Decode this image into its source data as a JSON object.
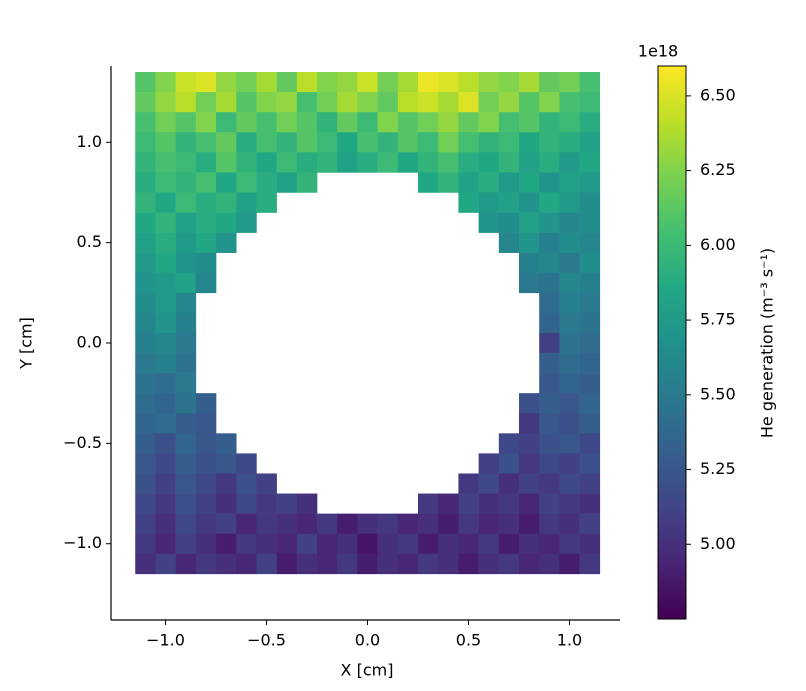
{
  "chart_data": {
    "type": "heatmap",
    "xlabel": "X [cm]",
    "ylabel": "Y [cm]",
    "x": [
      -1.1,
      -1.0,
      -0.9,
      -0.8,
      -0.7,
      -0.6,
      -0.5,
      -0.4,
      -0.3,
      -0.2,
      -0.1,
      0.0,
      0.1,
      0.2,
      0.3,
      0.4,
      0.5,
      0.6,
      0.7,
      0.8,
      0.9,
      1.0,
      1.1
    ],
    "y": [
      1.3,
      1.2,
      1.1,
      1.0,
      0.9,
      0.8,
      0.7,
      0.6,
      0.5,
      0.4,
      0.3,
      0.2,
      0.1,
      0.0,
      -0.1,
      -0.2,
      -0.3,
      -0.4,
      -0.5,
      -0.6,
      -0.7,
      -0.8,
      -0.9,
      -1.0,
      -1.1
    ],
    "values": [
      [
        6.1,
        6.25,
        6.45,
        6.5,
        6.3,
        6.2,
        6.35,
        6.15,
        6.4,
        6.25,
        6.3,
        6.45,
        6.2,
        6.35,
        6.55,
        6.5,
        6.4,
        6.3,
        6.25,
        6.35,
        6.15,
        6.2,
        6.05
      ],
      [
        6.15,
        6.3,
        6.4,
        6.2,
        6.35,
        6.1,
        6.25,
        6.3,
        6.05,
        6.2,
        6.35,
        6.25,
        6.15,
        6.4,
        6.45,
        6.35,
        6.5,
        6.2,
        6.3,
        6.1,
        6.25,
        6.05,
        6.0
      ],
      [
        6.05,
        6.2,
        6.1,
        6.25,
        6.0,
        6.15,
        6.05,
        6.2,
        6.1,
        5.95,
        6.15,
        6.0,
        6.25,
        6.1,
        6.2,
        6.3,
        6.15,
        6.25,
        6.05,
        6.1,
        5.95,
        6.0,
        5.9
      ],
      [
        6.0,
        6.1,
        5.95,
        6.05,
        6.15,
        5.9,
        6.05,
        5.95,
        6.1,
        6.0,
        5.85,
        6.05,
        5.95,
        6.1,
        6.0,
        6.2,
        6.05,
        5.95,
        6.0,
        5.85,
        5.95,
        5.9,
        5.8
      ],
      [
        5.95,
        6.05,
        6.0,
        5.9,
        6.1,
        5.95,
        5.85,
        6.0,
        5.9,
        5.95,
        5.8,
        5.9,
        6.0,
        5.85,
        5.95,
        6.05,
        5.9,
        5.85,
        5.95,
        5.8,
        5.9,
        5.75,
        5.85
      ],
      [
        5.9,
        6.0,
        5.95,
        6.05,
        5.85,
        6.0,
        5.9,
        5.8,
        5.95,
        null,
        null,
        null,
        null,
        null,
        5.85,
        5.95,
        5.8,
        5.9,
        5.75,
        5.85,
        5.7,
        5.8,
        5.75
      ],
      [
        5.95,
        5.85,
        6.0,
        5.9,
        5.95,
        5.8,
        5.9,
        null,
        null,
        null,
        null,
        null,
        null,
        null,
        null,
        null,
        5.85,
        5.75,
        5.8,
        5.7,
        5.85,
        5.75,
        5.65
      ],
      [
        5.85,
        5.95,
        5.8,
        5.9,
        5.85,
        5.75,
        null,
        null,
        null,
        null,
        null,
        null,
        null,
        null,
        null,
        null,
        null,
        5.7,
        5.65,
        5.8,
        5.7,
        5.6,
        5.65
      ],
      [
        5.8,
        5.9,
        5.75,
        5.85,
        5.7,
        null,
        null,
        null,
        null,
        null,
        null,
        null,
        null,
        null,
        null,
        null,
        null,
        null,
        5.6,
        5.7,
        5.55,
        5.65,
        5.6
      ],
      [
        5.75,
        5.85,
        5.7,
        5.65,
        null,
        null,
        null,
        null,
        null,
        null,
        null,
        null,
        null,
        null,
        null,
        null,
        null,
        null,
        null,
        5.55,
        5.6,
        5.5,
        5.65
      ],
      [
        5.7,
        5.75,
        5.8,
        5.6,
        null,
        null,
        null,
        null,
        null,
        null,
        null,
        null,
        null,
        null,
        null,
        null,
        null,
        null,
        null,
        5.5,
        5.45,
        5.6,
        5.55
      ],
      [
        5.65,
        5.75,
        5.6,
        null,
        null,
        null,
        null,
        null,
        null,
        null,
        null,
        null,
        null,
        null,
        null,
        null,
        null,
        null,
        null,
        null,
        5.4,
        5.55,
        5.5
      ],
      [
        5.6,
        5.7,
        5.55,
        null,
        null,
        null,
        null,
        null,
        null,
        null,
        null,
        null,
        null,
        null,
        null,
        null,
        null,
        null,
        null,
        null,
        5.35,
        5.5,
        5.45
      ],
      [
        5.55,
        5.6,
        5.5,
        null,
        null,
        null,
        null,
        null,
        null,
        null,
        null,
        null,
        null,
        null,
        null,
        null,
        null,
        null,
        null,
        null,
        5.1,
        5.45,
        5.4
      ],
      [
        5.5,
        5.55,
        5.45,
        null,
        null,
        null,
        null,
        null,
        null,
        null,
        null,
        null,
        null,
        null,
        null,
        null,
        null,
        null,
        null,
        null,
        5.3,
        5.4,
        5.35
      ],
      [
        5.45,
        5.4,
        5.5,
        null,
        null,
        null,
        null,
        null,
        null,
        null,
        null,
        null,
        null,
        null,
        null,
        null,
        null,
        null,
        null,
        null,
        5.25,
        5.35,
        5.3
      ],
      [
        5.4,
        5.35,
        5.45,
        5.3,
        null,
        null,
        null,
        null,
        null,
        null,
        null,
        null,
        null,
        null,
        null,
        null,
        null,
        null,
        null,
        5.2,
        5.3,
        5.25,
        5.35
      ],
      [
        5.35,
        5.4,
        5.3,
        5.25,
        null,
        null,
        null,
        null,
        null,
        null,
        null,
        null,
        null,
        null,
        null,
        null,
        null,
        null,
        null,
        5.05,
        5.25,
        5.2,
        5.3
      ],
      [
        5.3,
        5.2,
        5.35,
        5.25,
        5.3,
        null,
        null,
        null,
        null,
        null,
        null,
        null,
        null,
        null,
        null,
        null,
        null,
        null,
        5.15,
        5.1,
        5.2,
        5.25,
        5.15
      ],
      [
        5.25,
        5.15,
        5.3,
        5.2,
        5.25,
        5.15,
        null,
        null,
        null,
        null,
        null,
        null,
        null,
        null,
        null,
        null,
        null,
        5.1,
        5.2,
        5.05,
        5.15,
        5.1,
        5.2
      ],
      [
        5.2,
        5.1,
        5.25,
        5.15,
        5.05,
        5.2,
        5.1,
        null,
        null,
        null,
        null,
        null,
        null,
        null,
        null,
        null,
        5.05,
        5.15,
        5.0,
        5.1,
        5.05,
        5.15,
        5.1
      ],
      [
        5.15,
        5.05,
        5.2,
        5.1,
        5.0,
        5.15,
        5.05,
        5.1,
        5.0,
        null,
        null,
        null,
        null,
        null,
        5.05,
        4.95,
        5.1,
        5.0,
        5.05,
        4.95,
        5.1,
        5.05,
        5.0
      ],
      [
        5.1,
        5.0,
        5.15,
        5.05,
        5.1,
        4.95,
        5.05,
        5.0,
        4.95,
        5.05,
        4.9,
        5.0,
        5.05,
        4.95,
        5.0,
        4.9,
        5.05,
        4.95,
        5.0,
        4.9,
        5.05,
        5.0,
        5.1
      ],
      [
        5.05,
        4.95,
        5.1,
        5.0,
        4.9,
        5.05,
        5.0,
        4.95,
        5.1,
        4.95,
        5.0,
        4.85,
        5.0,
        5.05,
        4.9,
        5.0,
        4.95,
        5.05,
        4.9,
        5.0,
        4.95,
        5.05,
        5.0
      ],
      [
        5.0,
        5.1,
        4.95,
        5.05,
        5.0,
        4.95,
        5.1,
        4.9,
        5.0,
        4.95,
        5.05,
        4.9,
        5.0,
        4.95,
        5.05,
        5.0,
        4.9,
        5.0,
        5.05,
        4.95,
        5.0,
        4.9,
        5.05
      ]
    ],
    "xlim": [
      -1.27,
      1.25
    ],
    "ylim": [
      -1.38,
      1.38
    ],
    "xticks": [
      {
        "value": -1.0,
        "label": "−1.0"
      },
      {
        "value": -0.5,
        "label": "−0.5"
      },
      {
        "value": 0.0,
        "label": "0.0"
      },
      {
        "value": 0.5,
        "label": "0.5"
      },
      {
        "value": 1.0,
        "label": "1.0"
      }
    ],
    "yticks": [
      {
        "value": -1.0,
        "label": "−1.0"
      },
      {
        "value": -0.5,
        "label": "−0.5"
      },
      {
        "value": 0.0,
        "label": "0.0"
      },
      {
        "value": 0.5,
        "label": "0.5"
      },
      {
        "value": 1.0,
        "label": "1.0"
      }
    ],
    "colorbar": {
      "label": "He generation (m⁻³ s⁻¹)",
      "offset_text": "1e18",
      "colormap": "viridis",
      "lim": [
        4.75,
        6.6
      ],
      "ticks": [
        {
          "value": 5.0,
          "label": "5.00"
        },
        {
          "value": 5.25,
          "label": "5.25"
        },
        {
          "value": 5.5,
          "label": "5.50"
        },
        {
          "value": 5.75,
          "label": "5.75"
        },
        {
          "value": 6.0,
          "label": "6.00"
        },
        {
          "value": 6.25,
          "label": "6.25"
        },
        {
          "value": 6.5,
          "label": "6.50"
        }
      ]
    }
  }
}
